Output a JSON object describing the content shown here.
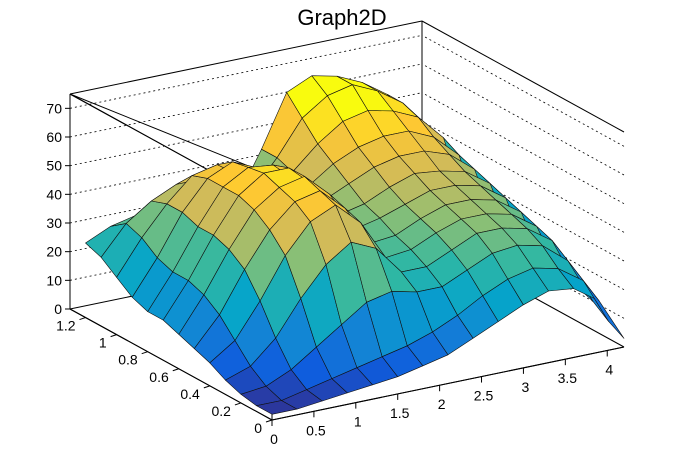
{
  "chart_data": {
    "type": "surface",
    "title": "Graph2D",
    "xlabel": "",
    "ylabel": "",
    "zlabel": "",
    "xlim": [
      0,
      4.2
    ],
    "ylim": [
      0,
      1.3
    ],
    "zlim": [
      0,
      75
    ],
    "x_ticks": [
      {
        "v": 0,
        "label": "0"
      },
      {
        "v": 0.5,
        "label": "0.5"
      },
      {
        "v": 1,
        "label": "1"
      },
      {
        "v": 1.5,
        "label": "1.5"
      },
      {
        "v": 2,
        "label": "2"
      },
      {
        "v": 2.5,
        "label": "2.5"
      },
      {
        "v": 3,
        "label": "3"
      },
      {
        "v": 3.5,
        "label": "3.5"
      },
      {
        "v": 4,
        "label": "4"
      }
    ],
    "y_ticks": [
      {
        "v": 0,
        "label": "0"
      },
      {
        "v": 0.2,
        "label": "0.2"
      },
      {
        "v": 0.4,
        "label": "0.4"
      },
      {
        "v": 0.6,
        "label": "0.6"
      },
      {
        "v": 0.8,
        "label": "0.8"
      },
      {
        "v": 1,
        "label": "1"
      },
      {
        "v": 1.2,
        "label": "1.2"
      }
    ],
    "z_ticks": [
      {
        "v": 0,
        "label": "0"
      },
      {
        "v": 10,
        "label": "10"
      },
      {
        "v": 20,
        "label": "20"
      },
      {
        "v": 30,
        "label": "30"
      },
      {
        "v": 40,
        "label": "40"
      },
      {
        "v": 50,
        "label": "50"
      },
      {
        "v": 60,
        "label": "60"
      },
      {
        "v": 70,
        "label": "70"
      }
    ],
    "grid": true,
    "palette": "kBird",
    "colors": [
      "#352a87",
      "#0f5cdd",
      "#1481d6",
      "#06a4ca",
      "#2eb7a4",
      "#87bf77",
      "#d1bb59",
      "#fec832",
      "#f9fb0e"
    ],
    "grid_x": [
      0,
      0.3,
      0.6,
      0.9,
      1.2,
      1.5,
      1.8,
      2.1,
      2.4,
      2.7,
      3.0,
      3.3,
      3.6,
      3.9,
      4.2
    ],
    "grid_y": [
      0,
      0.1,
      0.2,
      0.3,
      0.4,
      0.5,
      0.6,
      0.7,
      0.8,
      0.9,
      1.0,
      1.1,
      1.2
    ],
    "z": [
      [
        2,
        2,
        3,
        4,
        5,
        6,
        8,
        10,
        14,
        18,
        22,
        25,
        24,
        18,
        3
      ],
      [
        2,
        2,
        4,
        6,
        8,
        10,
        12,
        15,
        19,
        24,
        28,
        30,
        28,
        22,
        6
      ],
      [
        3,
        4,
        8,
        14,
        20,
        26,
        28,
        26,
        26,
        30,
        34,
        35,
        33,
        26,
        10
      ],
      [
        5,
        8,
        16,
        28,
        38,
        44,
        40,
        30,
        30,
        34,
        38,
        38,
        36,
        30,
        12
      ],
      [
        8,
        14,
        26,
        40,
        50,
        54,
        46,
        32,
        33,
        37,
        40,
        40,
        38,
        32,
        12
      ],
      [
        10,
        20,
        34,
        46,
        54,
        56,
        48,
        34,
        35,
        39,
        42,
        42,
        40,
        34,
        12
      ],
      [
        12,
        24,
        38,
        50,
        56,
        58,
        50,
        36,
        38,
        41,
        44,
        44,
        42,
        36,
        13
      ],
      [
        14,
        26,
        40,
        52,
        58,
        58,
        50,
        38,
        40,
        44,
        47,
        46,
        44,
        38,
        14
      ],
      [
        14,
        26,
        40,
        52,
        57,
        56,
        48,
        40,
        44,
        48,
        50,
        50,
        47,
        40,
        14
      ],
      [
        16,
        28,
        42,
        52,
        56,
        52,
        44,
        42,
        48,
        52,
        54,
        54,
        50,
        42,
        15
      ],
      [
        20,
        32,
        42,
        50,
        52,
        46,
        40,
        44,
        52,
        58,
        60,
        58,
        54,
        45,
        16
      ],
      [
        24,
        34,
        40,
        44,
        44,
        38,
        36,
        46,
        58,
        64,
        66,
        62,
        56,
        46,
        18
      ],
      [
        26,
        30,
        32,
        30,
        28,
        26,
        30,
        46,
        64,
        68,
        66,
        62,
        56,
        46,
        20
      ]
    ]
  }
}
